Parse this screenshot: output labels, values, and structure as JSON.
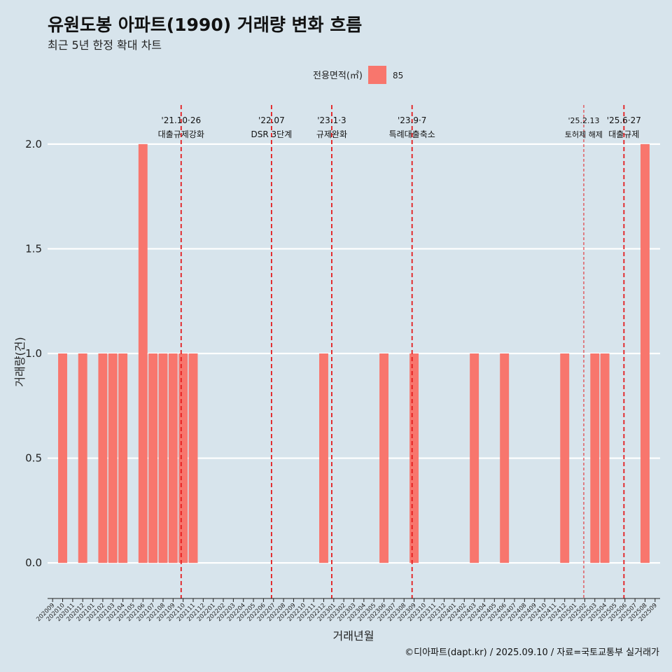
{
  "chart_data": {
    "type": "bar",
    "title": "유원도봉 아파트(1990) 거래량 변화 흐름",
    "subtitle": "최근 5년 한정 확대 차트",
    "legend_title": "전용면적(㎡)",
    "legend_items": [
      {
        "label": "85",
        "color": "#f8766d"
      }
    ],
    "xlabel": "거래년월",
    "ylabel": "거래량(건)",
    "ylim": [
      -0.17,
      2.17
    ],
    "yticks": [
      0.0,
      0.5,
      1.0,
      1.5,
      2.0
    ],
    "ytick_labels": [
      "0.0",
      "0.5",
      "1.0",
      "1.5",
      "2.0"
    ],
    "categories": [
      "202009",
      "202010",
      "202011",
      "202012",
      "202101",
      "202102",
      "202103",
      "202104",
      "202105",
      "202106",
      "202107",
      "202108",
      "202109",
      "202110",
      "202111",
      "202112",
      "202201",
      "202202",
      "202203",
      "202204",
      "202205",
      "202206",
      "202207",
      "202208",
      "202209",
      "202210",
      "202211",
      "202212",
      "202301",
      "202302",
      "202303",
      "202304",
      "202305",
      "202306",
      "202307",
      "202308",
      "202309",
      "202310",
      "202311",
      "202312",
      "202401",
      "202402",
      "202403",
      "202404",
      "202405",
      "202406",
      "202407",
      "202408",
      "202409",
      "202410",
      "202411",
      "202412",
      "202501",
      "202502",
      "202503",
      "202504",
      "202505",
      "202506",
      "202507",
      "202508",
      "202509"
    ],
    "series": [
      {
        "name": "85",
        "color": "#f8766d",
        "values": [
          0,
          1,
          0,
          1,
          0,
          1,
          1,
          1,
          0,
          2,
          1,
          1,
          1,
          1,
          1,
          0,
          0,
          0,
          0,
          0,
          0,
          0,
          0,
          0,
          0,
          0,
          0,
          1,
          0,
          0,
          0,
          0,
          0,
          1,
          0,
          0,
          1,
          0,
          0,
          0,
          0,
          0,
          1,
          0,
          0,
          1,
          0,
          0,
          0,
          0,
          0,
          1,
          0,
          0,
          1,
          1,
          0,
          0,
          0,
          2,
          0
        ]
      }
    ],
    "annotations": [
      {
        "x": 13.3,
        "line1": "'21.10·26",
        "line2": "대출규제강화",
        "style": "thick"
      },
      {
        "x": 22.3,
        "line1": "'22.07",
        "line2": "DSR 3단계",
        "style": "thick"
      },
      {
        "x": 28.3,
        "line1": "'23.1·3",
        "line2": "규제완화",
        "style": "thick"
      },
      {
        "x": 36.3,
        "line1": "'23.9·7",
        "line2": "특례대출축소",
        "style": "thick"
      },
      {
        "x": 53.4,
        "line1": "'25.2.13",
        "line2": "토허제 해제",
        "style": "thin"
      },
      {
        "x": 57.4,
        "line1": "'25.6·27",
        "line2": "대출규제",
        "style": "thick"
      }
    ],
    "annotation_color": "#e41a1c"
  },
  "caption": "©디아파트(dapt.kr) / 2025.09.10 / 자료=국토교통부 실거래가"
}
